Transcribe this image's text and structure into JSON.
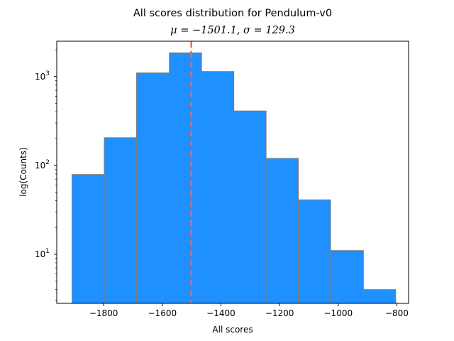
{
  "chart_data": {
    "type": "bar",
    "subtype": "histogram",
    "title": "All scores distribution for Pendulum-v0",
    "subtitle": "μ = −1501.1, σ = 129.3",
    "xlabel": "All scores",
    "ylabel": "log(Counts)",
    "xlim": [
      -1960,
      -760
    ],
    "ylim": [
      2.8,
      2500
    ],
    "yscale": "log",
    "grid": false,
    "x_ticks": [
      {
        "value": -1800,
        "label": "−1800"
      },
      {
        "value": -1600,
        "label": "−1600"
      },
      {
        "value": -1400,
        "label": "−1400"
      },
      {
        "value": -1200,
        "label": "−1200"
      },
      {
        "value": -1000,
        "label": "−1000"
      },
      {
        "value": -800,
        "label": "−800"
      }
    ],
    "y_ticks": [
      {
        "value": 10,
        "base": "10",
        "exp": "1"
      },
      {
        "value": 100,
        "base": "10",
        "exp": "2"
      },
      {
        "value": 1000,
        "base": "10",
        "exp": "3"
      }
    ],
    "bins": [
      {
        "start": -1908,
        "end": -1798,
        "count": 79
      },
      {
        "start": -1798,
        "end": -1688,
        "count": 205
      },
      {
        "start": -1688,
        "end": -1576,
        "count": 1100
      },
      {
        "start": -1576,
        "end": -1466,
        "count": 1850
      },
      {
        "start": -1466,
        "end": -1356,
        "count": 1140
      },
      {
        "start": -1356,
        "end": -1246,
        "count": 410
      },
      {
        "start": -1246,
        "end": -1136,
        "count": 120
      },
      {
        "start": -1136,
        "end": -1026,
        "count": 41
      },
      {
        "start": -1026,
        "end": -914,
        "count": 11
      },
      {
        "start": -914,
        "end": -804,
        "count": 4
      }
    ],
    "mean_line": {
      "value": -1501.1
    },
    "colors": {
      "bar_fill": "#1e90ff",
      "bar_edge": "#808080",
      "mean_line": "#ff6347"
    }
  }
}
